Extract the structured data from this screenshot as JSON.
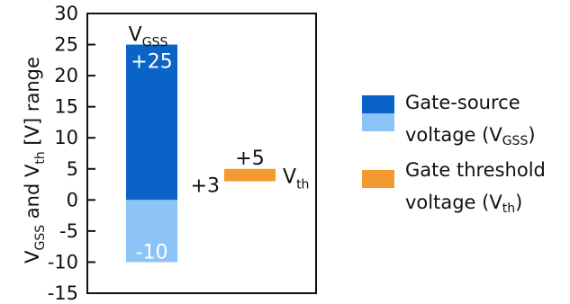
{
  "chart_data": {
    "type": "bar",
    "ylabel": {
      "main1": "V",
      "sub1": "GSS",
      "mid": " and V",
      "sub2": "th",
      "tail": " [V] range"
    },
    "ylim": [
      -15,
      30
    ],
    "yticks": [
      "30",
      "25",
      "20",
      "15",
      "10",
      "5",
      "0",
      "-5",
      "-10",
      "-15"
    ],
    "ytick_values": [
      30,
      25,
      20,
      15,
      10,
      5,
      0,
      -5,
      -10,
      -15
    ],
    "series": [
      {
        "name": "Gate-source voltage (VGSS)",
        "label": {
          "main": "V",
          "sub": "GSS"
        },
        "range": [
          -10,
          25
        ],
        "positive_color": "#0a64c8",
        "negative_color": "#8cc4f7",
        "value_labels": {
          "max": "+25",
          "min": "-10"
        }
      },
      {
        "name": "Gate threshold voltage (Vth)",
        "label": {
          "main": "V",
          "sub": "th"
        },
        "range": [
          3,
          5
        ],
        "color": "#f59a30",
        "value_labels": {
          "max": "+5",
          "min": "+3"
        }
      }
    ],
    "legend_position": "right",
    "grid": false
  },
  "legend": {
    "vgss": {
      "line1": "Gate-source",
      "line2_main": "voltage (V",
      "line2_sub": "GSS",
      "line2_tail": ")"
    },
    "vth": {
      "line1": "Gate threshold",
      "line2_main": "voltage (V",
      "line2_sub": "th",
      "line2_tail": ")"
    }
  }
}
